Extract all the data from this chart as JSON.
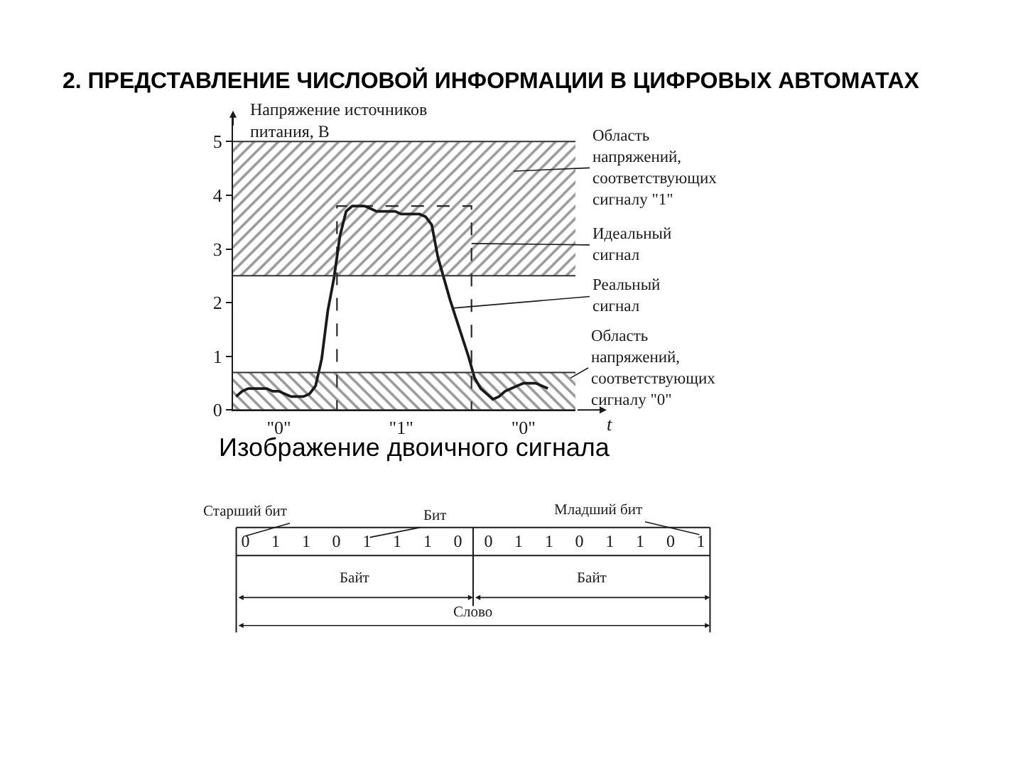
{
  "chart_data": [
    {
      "type": "line",
      "title": "2. ПРЕДСТАВЛЕНИЕ ЧИСЛОВОЙ ИНФОРМАЦИИ В ЦИФРОВЫХ АВТОМАТАХ",
      "ylabel": "Напряжение источников питания, В",
      "xlabel": "t",
      "categories": [
        null,
        null,
        null,
        null,
        null,
        null,
        null,
        "\"0\"",
        null,
        null,
        null,
        null,
        null,
        null,
        null,
        null,
        null,
        null,
        null,
        null,
        null,
        null,
        null,
        null,
        null,
        null,
        null,
        "\"1\"",
        null,
        null,
        null,
        null,
        null,
        null,
        null,
        null,
        null,
        null,
        null,
        null,
        null,
        null,
        null,
        null,
        null,
        null,
        null,
        "\"0\"",
        null,
        null,
        null,
        null,
        null,
        null,
        null,
        null
      ],
      "ylim": [
        0,
        5.5
      ],
      "yticks": [
        0,
        1,
        2,
        3,
        4,
        5
      ],
      "series": [
        {
          "name": "Идеальный сигнал",
          "type": "step",
          "color": "#2a2a2a",
          "line_style": "dashed",
          "values": [
            null,
            null,
            null,
            null,
            null,
            null,
            null,
            null,
            null,
            null,
            null,
            null,
            null,
            null,
            null,
            null,
            0,
            3.8,
            3.8,
            3.8,
            3.8,
            3.8,
            3.8,
            3.8,
            3.8,
            3.8,
            3.8,
            3.8,
            3.8,
            3.8,
            3.8,
            3.8,
            3.8,
            3.8,
            3.8,
            3.8,
            3.8,
            3.8,
            3.8,
            0,
            null,
            null,
            null,
            null,
            null,
            null,
            null,
            null,
            null,
            null,
            null,
            null,
            null,
            null,
            null,
            null
          ]
        },
        {
          "name": "Реальный сигнал",
          "color": "#1a1a1a",
          "line_style": "solid",
          "values": [
            0.25,
            0.35,
            0.4,
            0.4,
            0.4,
            0.4,
            0.35,
            0.35,
            0.3,
            0.25,
            0.25,
            0.25,
            0.3,
            0.45,
            0.95,
            1.85,
            2.45,
            3.25,
            3.7,
            3.8,
            3.8,
            3.8,
            3.75,
            3.7,
            3.7,
            3.7,
            3.7,
            3.65,
            3.65,
            3.65,
            3.65,
            3.6,
            3.45,
            2.85,
            2.45,
            2.05,
            1.7,
            1.35,
            1.0,
            0.6,
            0.4,
            0.3,
            0.2,
            0.25,
            0.35,
            0.4,
            0.45,
            0.5,
            0.5,
            0.5,
            0.45,
            0.4,
            null,
            null,
            null,
            null
          ]
        }
      ],
      "bands": [
        {
          "axis": "y",
          "from": 2.5,
          "to": 5,
          "label": "Область напряжений, соответствующих сигналу \"1\"",
          "color": "#333333"
        },
        {
          "axis": "y",
          "from": 0,
          "to": 0.7,
          "label": "Область напряжений, соответствующих сигналу \"0\"",
          "color": "#333333"
        }
      ],
      "annotations": [
        "Изображение двоичного сигнала"
      ]
    },
    {
      "type": "other",
      "values": [
        0,
        1,
        1,
        0,
        1,
        1,
        1,
        0,
        0,
        1,
        1,
        0,
        1,
        1,
        0,
        1
      ],
      "data_labels": true,
      "annotations": [
        "Старший бит",
        "Бит",
        "Младший бит",
        "Байт",
        "Байт",
        "Слово"
      ]
    }
  ]
}
